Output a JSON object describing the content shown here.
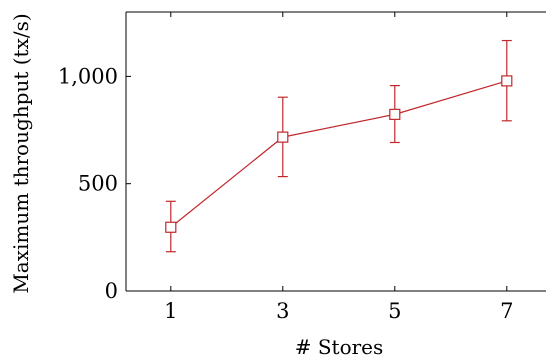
{
  "chart_data": {
    "type": "line",
    "title": "",
    "xlabel": "# Stores",
    "ylabel": "Maximum throughput (tx/s)",
    "x_ticks": [
      "1",
      "3",
      "5",
      "7"
    ],
    "y_ticks": [
      "0",
      "500",
      "1,000"
    ],
    "xlim": [
      0.2,
      7.7
    ],
    "ylim": [
      0,
      1300
    ],
    "series": [
      {
        "color": "#c0282d",
        "marker": "square",
        "x": [
          1,
          3,
          5,
          7
        ],
        "y": [
          297,
          717,
          823,
          979
        ],
        "error_low": [
          183,
          533,
          692,
          793
        ],
        "error_high": [
          418,
          903,
          957,
          1167
        ]
      }
    ]
  }
}
